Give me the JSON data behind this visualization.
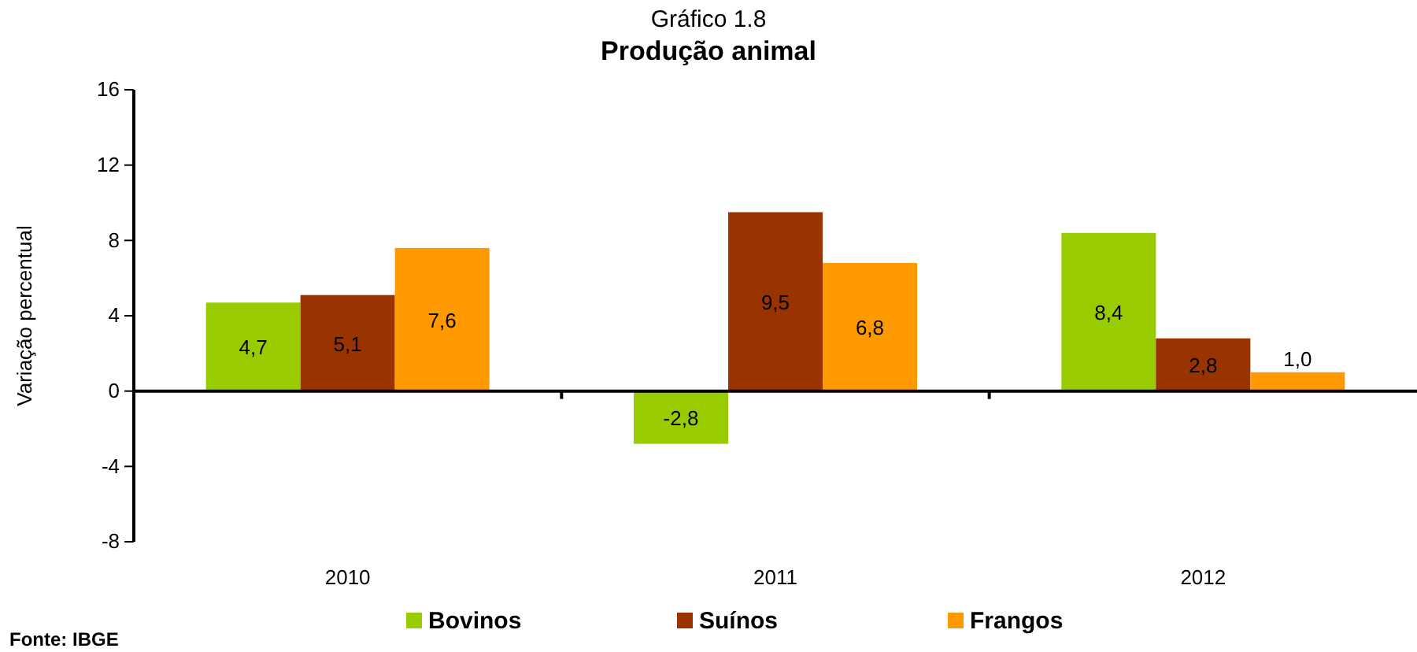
{
  "chart_data": {
    "type": "bar",
    "title": "Gráfico 1.8",
    "subtitle": "Produção animal",
    "ylabel": "Variação percentual",
    "categories": [
      "2010",
      "2011",
      "2012"
    ],
    "series": [
      {
        "name": "Bovinos",
        "color": "#99cc00",
        "values": [
          4.7,
          -2.8,
          8.4
        ],
        "value_labels": [
          "4,7",
          "-2,8",
          "8,4"
        ]
      },
      {
        "name": "Suínos",
        "color": "#993300",
        "values": [
          5.1,
          9.5,
          2.8
        ],
        "value_labels": [
          "5,1",
          "9,5",
          "2,8"
        ]
      },
      {
        "name": "Frangos",
        "color": "#ff9900",
        "values": [
          7.6,
          6.8,
          1.0
        ],
        "value_labels": [
          "7,6",
          "6,8",
          "1,0"
        ]
      }
    ],
    "ylim": [
      -8,
      16
    ],
    "yticks": [
      -8,
      -4,
      0,
      4,
      8,
      12,
      16
    ],
    "legend": "bottom",
    "annotations": [
      "Fonte: IBGE"
    ]
  }
}
